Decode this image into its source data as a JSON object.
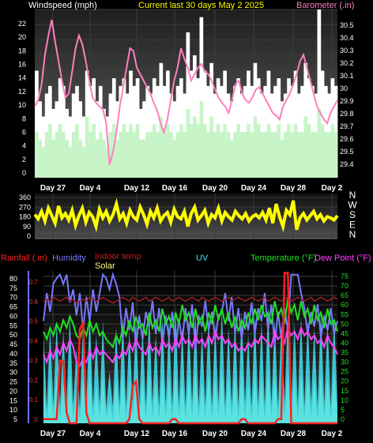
{
  "chart_data": [
    {
      "type": "area",
      "title": "Current last 30 days May 2 2025",
      "ylabel_left": "Windspeed (mph)",
      "ylabel_right": "Barometer (.in)",
      "ylim": [
        0,
        22
      ],
      "ylim_right": [
        29.3,
        30.6
      ],
      "left_ticks": [
        "0",
        "2",
        "4",
        "6",
        "8",
        "10",
        "12",
        "14",
        "16",
        "18",
        "20",
        "22"
      ],
      "right_ticks": [
        "29.4",
        "29.5",
        "29.6",
        "29.7",
        "29.8",
        "29.9",
        "30",
        "30.1",
        "30.2",
        "30.3",
        "30.4",
        "30.5"
      ],
      "x_ticks": [
        "Day 27",
        "Day 4",
        "Day 12",
        "Day 16",
        "Day 20",
        "Day 24",
        "Day 28",
        "Day 2"
      ],
      "grid": true,
      "series": [
        {
          "key": "gust",
          "color": "#ffffff",
          "values": [
            14,
            10,
            8,
            11,
            12,
            9,
            10,
            13,
            12,
            9,
            8,
            11,
            12,
            10,
            8,
            14,
            12,
            13,
            10,
            12,
            9,
            8,
            11,
            13,
            10,
            12,
            13,
            11,
            14,
            12,
            13,
            9,
            10,
            12,
            11,
            13,
            12,
            15,
            12,
            14,
            11,
            10,
            12,
            13,
            11,
            19,
            14,
            16,
            13,
            21,
            14,
            12,
            15,
            11,
            13,
            12,
            14,
            11,
            10,
            12,
            13,
            11,
            12,
            14,
            12,
            15,
            13,
            11,
            12,
            14,
            11,
            12,
            13,
            10,
            11,
            13,
            12,
            14,
            11,
            12,
            15,
            13,
            12,
            11,
            22,
            14,
            12,
            11,
            13,
            12
          ]
        },
        {
          "key": "wind",
          "color": "#c8f5c8",
          "values": [
            6,
            5,
            4,
            6,
            7,
            5,
            6,
            7,
            6,
            5,
            4,
            6,
            7,
            5,
            4,
            8,
            6,
            7,
            5,
            6,
            5,
            4,
            6,
            7,
            5,
            6,
            7,
            6,
            7,
            6,
            7,
            5,
            5,
            6,
            6,
            7,
            6,
            8,
            6,
            7,
            6,
            5,
            6,
            7,
            6,
            9,
            7,
            8,
            7,
            10,
            7,
            6,
            8,
            6,
            7,
            6,
            7,
            6,
            5,
            6,
            7,
            6,
            6,
            7,
            6,
            8,
            7,
            6,
            6,
            7,
            6,
            6,
            7,
            5,
            6,
            7,
            6,
            7,
            6,
            6,
            8,
            7,
            6,
            6,
            9,
            7,
            6,
            6,
            7,
            6
          ]
        },
        {
          "key": "barometer",
          "color": "#ff7fbf",
          "values": [
            29.85,
            29.9,
            30.02,
            30.25,
            30.4,
            30.52,
            30.35,
            30.2,
            30.05,
            29.92,
            29.95,
            30.12,
            30.3,
            30.4,
            30.33,
            30.2,
            30.05,
            29.92,
            29.88,
            29.85,
            29.83,
            29.72,
            29.4,
            29.5,
            29.65,
            29.85,
            30.0,
            30.15,
            30.3,
            30.28,
            30.15,
            30.1,
            30.05,
            30.0,
            29.95,
            29.88,
            29.82,
            29.72,
            29.65,
            29.75,
            29.9,
            30.05,
            30.15,
            30.3,
            30.22,
            30.15,
            30.05,
            30.1,
            30.15,
            30.18,
            30.12,
            30.1,
            30.05,
            29.98,
            29.92,
            29.88,
            29.85,
            29.8,
            29.9,
            30.02,
            30.05,
            29.95,
            29.9,
            29.88,
            29.92,
            29.98,
            30.0,
            29.95,
            29.9,
            29.85,
            29.8,
            29.78,
            29.75,
            29.85,
            29.9,
            29.95,
            30.02,
            30.1,
            30.2,
            30.25,
            30.15,
            30.05,
            29.95,
            29.85,
            29.8,
            29.75,
            29.72,
            29.8,
            29.85,
            29.9
          ]
        }
      ]
    },
    {
      "type": "line",
      "ylim": [
        0,
        360
      ],
      "left_ticks": [
        "0",
        "90",
        "180",
        "270",
        "360"
      ],
      "right_ticks": [
        "N",
        "E",
        "S",
        "W",
        "N"
      ],
      "x_ticks": [
        "Day 27",
        "Day 4",
        "Day 12",
        "Day 16",
        "Day 20",
        "Day 24",
        "Day 28",
        "Day 2"
      ],
      "series": [
        {
          "key": "direction",
          "color": "#ffff00",
          "values": [
            200,
            160,
            230,
            140,
            260,
            190,
            120,
            280,
            170,
            210,
            150,
            240,
            100,
            190,
            260,
            130,
            220,
            180,
            90,
            250,
            170,
            230,
            140,
            200,
            300,
            160,
            210,
            120,
            240,
            180,
            150,
            270,
            200,
            110,
            230,
            170,
            260,
            140,
            190,
            220,
            130,
            250,
            180,
            160,
            230,
            90,
            210,
            270,
            150,
            190,
            240,
            120,
            200,
            170,
            260,
            140,
            220,
            180,
            150,
            230,
            190,
            160,
            210,
            140,
            180,
            200,
            170,
            220,
            150,
            260,
            120,
            300,
            180,
            90,
            240,
            200,
            330,
            60,
            170,
            210,
            150,
            190,
            230,
            160,
            200,
            140,
            180,
            170,
            150,
            190
          ]
        }
      ]
    },
    {
      "type": "line",
      "ylabels": [
        "Rainfall (.in)",
        "Humidity",
        "Indoor temp",
        "Solar",
        "UV",
        "Temperature (°F)",
        "Dew Point (°F)"
      ],
      "ylim_left": [
        0,
        82
      ],
      "ylim_rain": [
        0,
        0.73
      ],
      "ylim_right": [
        0,
        75
      ],
      "left_ticks": [
        "5",
        "10",
        "15",
        "20",
        "25",
        "30",
        "35",
        "40",
        "45",
        "50",
        "55",
        "60",
        "65",
        "70",
        "75",
        "80"
      ],
      "rain_ticks": [
        "0",
        "0.1",
        "0.2",
        "0.3",
        "0.4",
        "0.5",
        "0.6",
        "0.7"
      ],
      "right_ticks": [
        "0",
        "5",
        "10",
        "15",
        "20",
        "25",
        "30",
        "35",
        "40",
        "45",
        "50",
        "55",
        "60",
        "65",
        "70",
        "75"
      ],
      "x_ticks": [
        "Day 27",
        "Day 4",
        "Day 12",
        "Day 16",
        "Day 20",
        "Day 24",
        "Day 28",
        "Day 2"
      ],
      "series": [
        {
          "key": "solar",
          "color": "#ffff80",
          "values": [
            20,
            2,
            24,
            3,
            26,
            2,
            22,
            4,
            27,
            3,
            18,
            2,
            25,
            3,
            28,
            2,
            21,
            3,
            26,
            2,
            12,
            2,
            24,
            3,
            27,
            2,
            23,
            4,
            26,
            3,
            24,
            2,
            28,
            3,
            22,
            2,
            27,
            3,
            25,
            2,
            29,
            3,
            24,
            2,
            26,
            3,
            28,
            2,
            23,
            3,
            27,
            2,
            25,
            3,
            29,
            2,
            24,
            3,
            26,
            2,
            28,
            3,
            22,
            2,
            27,
            3,
            25,
            2,
            30,
            3,
            26,
            2,
            24,
            3,
            28,
            2,
            25,
            3,
            27,
            2,
            26,
            3,
            24,
            2,
            28,
            3,
            25,
            2,
            27,
            3
          ]
        },
        {
          "key": "uv",
          "color": "#40e0f0",
          "values": [
            48,
            8,
            52,
            10,
            55,
            9,
            50,
            12,
            58,
            10,
            40,
            8,
            56,
            11,
            60,
            9,
            48,
            10,
            55,
            8,
            28,
            9,
            52,
            10,
            58,
            9,
            50,
            12,
            56,
            10,
            52,
            9,
            60,
            11,
            48,
            9,
            58,
            10,
            55,
            9,
            62,
            10,
            52,
            9,
            56,
            11,
            60,
            9,
            50,
            10,
            58,
            9,
            54,
            11,
            62,
            9,
            52,
            10,
            56,
            9,
            60,
            11,
            48,
            9,
            58,
            10,
            55,
            9,
            64,
            10,
            56,
            9,
            52,
            11,
            60,
            9,
            54,
            10,
            58,
            9,
            56,
            11,
            52,
            9,
            60,
            10,
            54,
            9,
            58,
            10
          ]
        },
        {
          "key": "humidity",
          "color": "#7878ff",
          "values": [
            55,
            70,
            60,
            75,
            78,
            80,
            75,
            80,
            65,
            72,
            58,
            70,
            50,
            68,
            55,
            72,
            60,
            70,
            80,
            78,
            72,
            80,
            75,
            68,
            45,
            62,
            50,
            65,
            40,
            58,
            45,
            60,
            52,
            66,
            48,
            62,
            42,
            58,
            46,
            60,
            40,
            56,
            44,
            62,
            48,
            64,
            40,
            58,
            52,
            66,
            50,
            60,
            45,
            58,
            60,
            70,
            55,
            68,
            48,
            62,
            45,
            60,
            50,
            65,
            48,
            62,
            55,
            70,
            50,
            64,
            42,
            60,
            46,
            62,
            50,
            80,
            80,
            80,
            70,
            62,
            48,
            60,
            52,
            64,
            46,
            58,
            50,
            62,
            48,
            55
          ]
        },
        {
          "key": "temperature",
          "color": "#20e020",
          "values": [
            46,
            42,
            48,
            44,
            50,
            46,
            52,
            48,
            54,
            50,
            44,
            42,
            48,
            44,
            52,
            46,
            50,
            44,
            46,
            42,
            40,
            38,
            44,
            40,
            48,
            44,
            52,
            46,
            54,
            48,
            50,
            44,
            56,
            48,
            52,
            46,
            58,
            50,
            54,
            48,
            56,
            50,
            60,
            52,
            56,
            48,
            58,
            50,
            54,
            46,
            56,
            50,
            60,
            52,
            58,
            50,
            56,
            48,
            54,
            46,
            52,
            48,
            56,
            50,
            58,
            52,
            60,
            54,
            56,
            50,
            62,
            54,
            58,
            50,
            64,
            56,
            60,
            52,
            62,
            54,
            58,
            50,
            60,
            52,
            56,
            48,
            58,
            50,
            52,
            46
          ]
        },
        {
          "key": "dewpoint",
          "color": "#ff40ff",
          "values": [
            34,
            30,
            36,
            32,
            38,
            34,
            40,
            36,
            42,
            38,
            30,
            28,
            32,
            30,
            36,
            32,
            38,
            34,
            36,
            34,
            32,
            30,
            34,
            32,
            36,
            34,
            40,
            36,
            42,
            38,
            36,
            34,
            40,
            36,
            38,
            34,
            42,
            38,
            40,
            36,
            42,
            38,
            44,
            40,
            42,
            38,
            44,
            40,
            42,
            38,
            44,
            40,
            46,
            42,
            44,
            40,
            42,
            38,
            40,
            36,
            38,
            36,
            40,
            38,
            42,
            40,
            44,
            42,
            40,
            38,
            46,
            42,
            44,
            40,
            48,
            44,
            46,
            42,
            48,
            44,
            46,
            42,
            44,
            40,
            42,
            38,
            44,
            40,
            38,
            34
          ]
        },
        {
          "key": "indoor_temp",
          "color": "#a02020",
          "values": [
            62,
            63,
            62,
            64,
            63,
            62,
            63,
            64,
            62,
            63,
            61,
            62,
            63,
            62,
            64,
            63,
            62,
            63,
            64,
            63,
            62,
            61,
            62,
            63,
            64,
            63,
            62,
            64,
            63,
            62,
            63,
            64,
            62,
            63,
            64,
            63,
            62,
            63,
            64,
            62,
            63,
            64,
            63,
            62,
            63,
            64,
            63,
            62,
            64,
            63,
            62,
            63,
            64,
            63,
            62,
            63,
            64,
            62,
            63,
            64,
            63,
            62,
            63,
            64,
            63,
            62,
            63,
            64,
            62,
            63,
            64,
            63,
            62,
            64,
            63,
            62,
            63,
            64,
            63,
            62,
            63,
            64,
            62,
            63,
            64,
            63,
            62,
            63,
            64,
            63
          ]
        },
        {
          "key": "rainfall",
          "color": "#ff2020",
          "values": [
            0.02,
            0.02,
            0.02,
            0.02,
            0.02,
            0.3,
            0.3,
            0.05,
            0.0,
            0.0,
            0.0,
            0.45,
            0.48,
            0.05,
            0.0,
            0.0,
            0.0,
            0.0,
            0.0,
            0.0,
            0.0,
            0.0,
            0.0,
            0.0,
            0.0,
            0.0,
            0.02,
            0.18,
            0.2,
            0.02,
            0.0,
            0.0,
            0.0,
            0.0,
            0.0,
            0.0,
            0.0,
            0.0,
            0.0,
            0.02,
            0.02,
            0.0,
            0.0,
            0.0,
            0.0,
            0.0,
            0.0,
            0.0,
            0.0,
            0.0,
            0.0,
            0.0,
            0.0,
            0.0,
            0.0,
            0.0,
            0.0,
            0.0,
            0.0,
            0.0,
            0.02,
            0.02,
            0.0,
            0.0,
            0.0,
            0.0,
            0.0,
            0.0,
            0.0,
            0.0,
            0.0,
            0.02,
            0.02,
            0.72,
            0.72,
            0.0,
            0.0,
            0.0,
            0.0,
            0.0,
            0.0,
            0.0,
            0.0,
            0.0,
            0.0,
            0.0,
            0.0,
            0.0,
            0.0,
            0.0
          ]
        }
      ]
    }
  ]
}
